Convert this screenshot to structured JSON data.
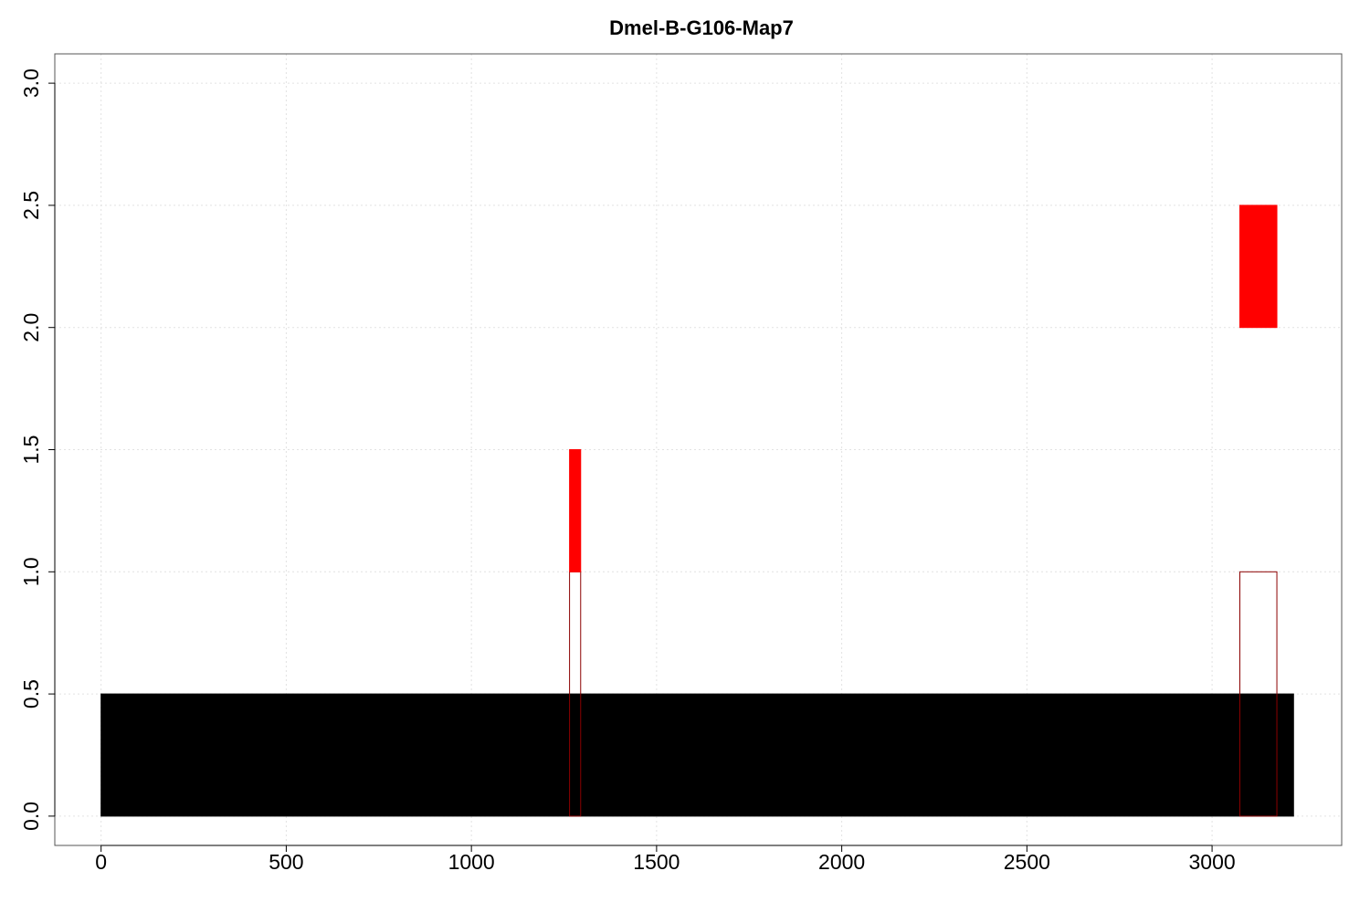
{
  "chart_data": {
    "type": "bar",
    "title": "Dmel-B-G106-Map7",
    "xlabel": "",
    "ylabel": "",
    "xlim": [
      -125,
      3350
    ],
    "ylim": [
      -0.12,
      3.12
    ],
    "x_ticks": [
      0,
      500,
      1000,
      1500,
      2000,
      2500,
      3000
    ],
    "y_ticks": [
      0.0,
      0.5,
      1.0,
      1.5,
      2.0,
      2.5,
      3.0
    ],
    "x_tick_labels": [
      "0",
      "500",
      "1000",
      "1500",
      "2000",
      "2500",
      "3000"
    ],
    "y_tick_labels": [
      "0.0",
      "0.5",
      "1.0",
      "1.5",
      "2.0",
      "2.5",
      "3.0"
    ],
    "grid": true,
    "legend": "none",
    "series": [
      {
        "color": "#000000",
        "rects": [
          {
            "x0": 0,
            "x1": 3220,
            "y0": 0.0,
            "y1": 0.5,
            "fill": "#000000",
            "stroke": "#000000"
          }
        ]
      },
      {
        "color": "#8b0000",
        "rects": [
          {
            "x0": 1265,
            "x1": 1295,
            "y0": 0.0,
            "y1": 1.0,
            "fill": "none",
            "stroke": "#8b0000"
          },
          {
            "x0": 3075,
            "x1": 3175,
            "y0": 0.0,
            "y1": 1.0,
            "fill": "none",
            "stroke": "#8b0000"
          }
        ]
      },
      {
        "color": "#ff0000",
        "rects": [
          {
            "x0": 1265,
            "x1": 1295,
            "y0": 1.0,
            "y1": 1.5,
            "fill": "#ff0000",
            "stroke": "#ff0000"
          },
          {
            "x0": 3075,
            "x1": 3175,
            "y0": 2.0,
            "y1": 2.5,
            "fill": "#ff0000",
            "stroke": "#ff0000"
          }
        ]
      }
    ]
  }
}
